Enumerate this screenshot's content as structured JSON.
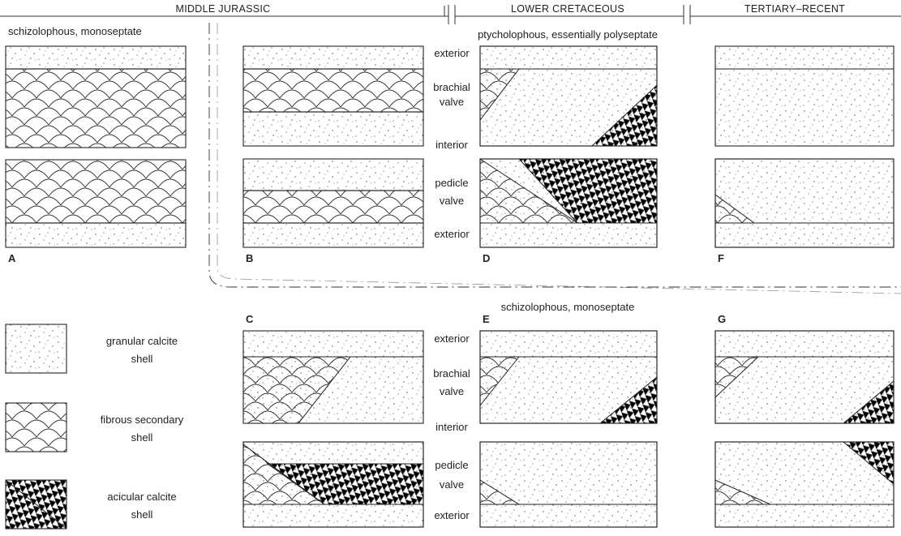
{
  "header": {
    "periods": [
      "MIDDLE JURASSIC",
      "LOWER CRETACEOUS",
      "TERTIARY–RECENT"
    ]
  },
  "notes": {
    "top_left": "schizolophous, monoseptate",
    "top_right": "ptycholophous, essentially polyseptate",
    "bottom": "schizolophous, monoseptate"
  },
  "row_labels": {
    "upper": [
      "exterior",
      "brachial",
      "valve",
      "interior",
      "pedicle",
      "valve",
      "exterior"
    ],
    "lower": [
      "exterior",
      "brachial",
      "valve",
      "interior",
      "pedicle",
      "valve",
      "exterior"
    ]
  },
  "panels": [
    "A",
    "B",
    "C",
    "D",
    "E",
    "F",
    "G"
  ],
  "legend": [
    {
      "lines": [
        "granular calcite",
        "shell"
      ]
    },
    {
      "lines": [
        "fibrous secondary",
        "shell"
      ]
    },
    {
      "lines": [
        "acicular calcite",
        "shell"
      ]
    }
  ]
}
